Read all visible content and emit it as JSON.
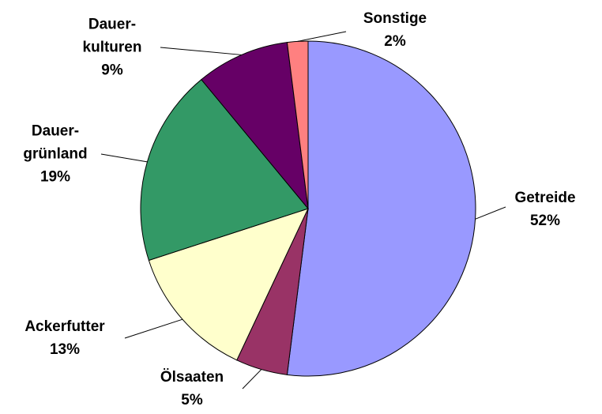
{
  "chart_data": {
    "type": "pie",
    "categories": [
      "Getreide",
      "Ölsaaten",
      "Ackerfutter",
      "Dauer-\ngrünland",
      "Dauer-\nkulturen",
      "Sonstige"
    ],
    "values": [
      52,
      5,
      13,
      19,
      9,
      2
    ],
    "value_labels": [
      "52%",
      "5%",
      "13%",
      "19%",
      "9%",
      "2%"
    ],
    "colors": [
      "#9999ff",
      "#993366",
      "#ffffcc",
      "#339966",
      "#660066",
      "#ff8080"
    ]
  }
}
